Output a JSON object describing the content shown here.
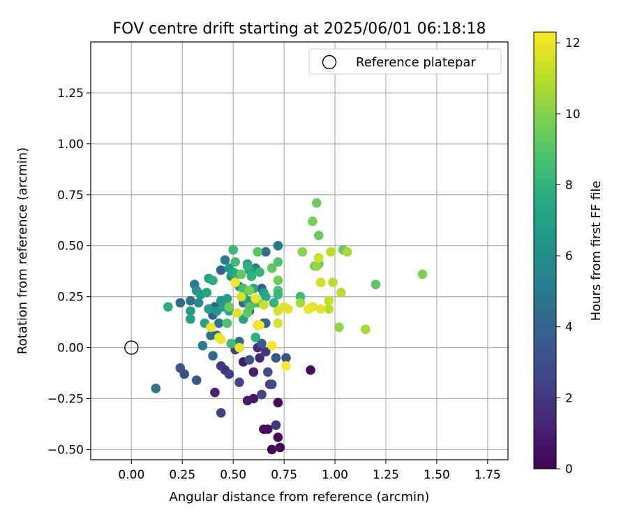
{
  "chart_data": {
    "type": "scatter",
    "title": "FOV centre drift starting at 2025/06/01 06:18:18",
    "xlabel": "Angular distance from reference (arcmin)",
    "ylabel": "Rotation from reference (arcmin)",
    "xlim": [
      -0.2,
      1.85
    ],
    "ylim": [
      -0.55,
      1.5
    ],
    "xticks": [
      {
        "v": 0.0,
        "label": "0.00"
      },
      {
        "v": 0.25,
        "label": "0.25"
      },
      {
        "v": 0.5,
        "label": "0.50"
      },
      {
        "v": 0.75,
        "label": "0.75"
      },
      {
        "v": 1.0,
        "label": "1.00"
      },
      {
        "v": 1.25,
        "label": "1.25"
      },
      {
        "v": 1.5,
        "label": "1.50"
      },
      {
        "v": 1.75,
        "label": "1.75"
      }
    ],
    "yticks": [
      {
        "v": -0.5,
        "label": "−0.50"
      },
      {
        "v": -0.25,
        "label": "−0.25"
      },
      {
        "v": 0.0,
        "label": "0.00"
      },
      {
        "v": 0.25,
        "label": "0.25"
      },
      {
        "v": 0.5,
        "label": "0.50"
      },
      {
        "v": 0.75,
        "label": "0.75"
      },
      {
        "v": 1.0,
        "label": "1.00"
      },
      {
        "v": 1.25,
        "label": "1.25"
      }
    ],
    "grid": true,
    "legend": {
      "position": "top-right",
      "label": "Reference platepar"
    },
    "reference_point": {
      "x": 0.0,
      "y": 0.0
    },
    "colorbar": {
      "label": "Hours from first FF file",
      "range": [
        0,
        12.3
      ],
      "ticks": [
        {
          "v": 0,
          "label": "0"
        },
        {
          "v": 2,
          "label": "2"
        },
        {
          "v": 4,
          "label": "4"
        },
        {
          "v": 6,
          "label": "6"
        },
        {
          "v": 8,
          "label": "8"
        },
        {
          "v": 10,
          "label": "10"
        },
        {
          "v": 12,
          "label": "12"
        }
      ],
      "colormap": "viridis"
    },
    "points": [
      {
        "x": 0.69,
        "y": -0.5,
        "h": 0.2
      },
      {
        "x": 0.72,
        "y": -0.44,
        "h": 0.3
      },
      {
        "x": 0.73,
        "y": -0.49,
        "h": 0.1
      },
      {
        "x": 0.65,
        "y": -0.4,
        "h": 0.4
      },
      {
        "x": 0.67,
        "y": -0.4,
        "h": 0.5
      },
      {
        "x": 0.71,
        "y": -0.38,
        "h": 1.8
      },
      {
        "x": 0.72,
        "y": -0.27,
        "h": 0.3
      },
      {
        "x": 0.88,
        "y": -0.11,
        "h": 0.4
      },
      {
        "x": 0.6,
        "y": -0.25,
        "h": 0.8
      },
      {
        "x": 0.57,
        "y": -0.26,
        "h": 0.9
      },
      {
        "x": 0.41,
        "y": -0.22,
        "h": 1.1
      },
      {
        "x": 0.44,
        "y": -0.32,
        "h": 2.4
      },
      {
        "x": 0.55,
        "y": -0.07,
        "h": 0.9
      },
      {
        "x": 0.6,
        "y": -0.12,
        "h": 1.0
      },
      {
        "x": 0.63,
        "y": -0.05,
        "h": 1.4
      },
      {
        "x": 0.64,
        "y": -0.23,
        "h": 2.6
      },
      {
        "x": 0.68,
        "y": -0.18,
        "h": 2.2
      },
      {
        "x": 0.69,
        "y": -0.18,
        "h": 2.8
      },
      {
        "x": 0.44,
        "y": -0.09,
        "h": 2.0
      },
      {
        "x": 0.46,
        "y": -0.11,
        "h": 1.8
      },
      {
        "x": 0.48,
        "y": -0.13,
        "h": 2.2
      },
      {
        "x": 0.53,
        "y": -0.17,
        "h": 2.5
      },
      {
        "x": 0.67,
        "y": -0.12,
        "h": 3.0
      },
      {
        "x": 0.66,
        "y": -0.02,
        "h": 2.0
      },
      {
        "x": 0.71,
        "y": -0.05,
        "h": 3.2
      },
      {
        "x": 0.76,
        "y": -0.05,
        "h": 3.0
      },
      {
        "x": 0.62,
        "y": 0.0,
        "h": 1.6
      },
      {
        "x": 0.64,
        "y": 0.02,
        "h": 3.5
      },
      {
        "x": 0.58,
        "y": -0.06,
        "h": 3.3
      },
      {
        "x": 0.51,
        "y": -0.01,
        "h": 2.2
      },
      {
        "x": 0.53,
        "y": 0.03,
        "h": 4.4
      },
      {
        "x": 0.65,
        "y": 0.12,
        "h": 2.8
      },
      {
        "x": 0.66,
        "y": 0.12,
        "h": 4.1
      },
      {
        "x": 0.24,
        "y": -0.1,
        "h": 3.2
      },
      {
        "x": 0.26,
        "y": -0.13,
        "h": 3.0
      },
      {
        "x": 0.32,
        "y": -0.16,
        "h": 3.4
      },
      {
        "x": 0.12,
        "y": -0.2,
        "h": 4.6
      },
      {
        "x": 0.4,
        "y": -0.04,
        "h": 4.3
      },
      {
        "x": 0.35,
        "y": 0.01,
        "h": 5.0
      },
      {
        "x": 0.39,
        "y": 0.06,
        "h": 4.5
      },
      {
        "x": 0.42,
        "y": 0.06,
        "h": 4.0
      },
      {
        "x": 0.43,
        "y": 0.12,
        "h": 4.7
      },
      {
        "x": 0.4,
        "y": 0.16,
        "h": 3.7
      },
      {
        "x": 0.41,
        "y": 0.2,
        "h": 3.4
      },
      {
        "x": 0.46,
        "y": 0.22,
        "h": 4.5
      },
      {
        "x": 0.44,
        "y": 0.38,
        "h": 4.0
      },
      {
        "x": 0.46,
        "y": 0.43,
        "h": 5.0
      },
      {
        "x": 0.5,
        "y": 0.48,
        "h": 3.8
      },
      {
        "x": 0.51,
        "y": 0.32,
        "h": 3.4
      },
      {
        "x": 0.55,
        "y": 0.22,
        "h": 4.1
      },
      {
        "x": 0.58,
        "y": 0.18,
        "h": 3.6
      },
      {
        "x": 0.6,
        "y": 0.22,
        "h": 3.8
      },
      {
        "x": 0.62,
        "y": 0.11,
        "h": 4.5
      },
      {
        "x": 0.64,
        "y": 0.29,
        "h": 3.5
      },
      {
        "x": 0.66,
        "y": 0.47,
        "h": 4.4
      },
      {
        "x": 0.72,
        "y": 0.5,
        "h": 5.0
      },
      {
        "x": 0.61,
        "y": 0.39,
        "h": 5.4
      },
      {
        "x": 0.24,
        "y": 0.22,
        "h": 4.2
      },
      {
        "x": 0.29,
        "y": 0.23,
        "h": 4.5
      },
      {
        "x": 0.31,
        "y": 0.31,
        "h": 5.1
      },
      {
        "x": 0.33,
        "y": 0.22,
        "h": 5.8
      },
      {
        "x": 0.32,
        "y": 0.28,
        "h": 6.3
      },
      {
        "x": 0.34,
        "y": 0.26,
        "h": 6.5
      },
      {
        "x": 0.29,
        "y": 0.14,
        "h": 7.0
      },
      {
        "x": 0.29,
        "y": 0.18,
        "h": 6.8
      },
      {
        "x": 0.36,
        "y": 0.12,
        "h": 7.2
      },
      {
        "x": 0.38,
        "y": 0.19,
        "h": 6.9
      },
      {
        "x": 0.37,
        "y": 0.27,
        "h": 7.4
      },
      {
        "x": 0.38,
        "y": 0.34,
        "h": 7.1
      },
      {
        "x": 0.4,
        "y": 0.33,
        "h": 7.6
      },
      {
        "x": 0.42,
        "y": 0.18,
        "h": 6.4
      },
      {
        "x": 0.44,
        "y": 0.23,
        "h": 6.6
      },
      {
        "x": 0.45,
        "y": 0.2,
        "h": 7.0
      },
      {
        "x": 0.47,
        "y": 0.24,
        "h": 6.8
      },
      {
        "x": 0.48,
        "y": 0.18,
        "h": 7.5
      },
      {
        "x": 0.49,
        "y": 0.35,
        "h": 6.2
      },
      {
        "x": 0.48,
        "y": 0.39,
        "h": 6.7
      },
      {
        "x": 0.5,
        "y": 0.37,
        "h": 7.3
      },
      {
        "x": 0.52,
        "y": 0.36,
        "h": 7.8
      },
      {
        "x": 0.53,
        "y": 0.3,
        "h": 6.5
      },
      {
        "x": 0.55,
        "y": 0.26,
        "h": 7.0
      },
      {
        "x": 0.55,
        "y": 0.14,
        "h": 7.1
      },
      {
        "x": 0.57,
        "y": 0.23,
        "h": 6.8
      },
      {
        "x": 0.57,
        "y": 0.41,
        "h": 6.6
      },
      {
        "x": 0.58,
        "y": 0.38,
        "h": 7.2
      },
      {
        "x": 0.59,
        "y": 0.35,
        "h": 7.9
      },
      {
        "x": 0.6,
        "y": 0.29,
        "h": 7.4
      },
      {
        "x": 0.61,
        "y": 0.05,
        "h": 7.8
      },
      {
        "x": 0.62,
        "y": 0.22,
        "h": 8.6
      },
      {
        "x": 0.62,
        "y": 0.47,
        "h": 9.0
      },
      {
        "x": 0.63,
        "y": 0.37,
        "h": 8.1
      },
      {
        "x": 0.65,
        "y": 0.27,
        "h": 6.9
      },
      {
        "x": 0.66,
        "y": 0.25,
        "h": 7.5
      },
      {
        "x": 0.7,
        "y": 0.22,
        "h": 8.0
      },
      {
        "x": 0.72,
        "y": 0.28,
        "h": 8.5
      },
      {
        "x": 0.72,
        "y": 0.26,
        "h": 8.2
      },
      {
        "x": 0.72,
        "y": 0.42,
        "h": 8.8
      },
      {
        "x": 0.69,
        "y": 0.39,
        "h": 9.2
      },
      {
        "x": 0.83,
        "y": 0.25,
        "h": 8.4
      },
      {
        "x": 0.83,
        "y": 0.22,
        "h": 10.5
      },
      {
        "x": 0.18,
        "y": 0.2,
        "h": 7.7
      },
      {
        "x": 0.5,
        "y": 0.48,
        "h": 8.3
      },
      {
        "x": 0.51,
        "y": 0.42,
        "h": 8.4
      },
      {
        "x": 0.49,
        "y": 0.02,
        "h": 8.5
      },
      {
        "x": 0.47,
        "y": 0.12,
        "h": 8.8
      },
      {
        "x": 0.57,
        "y": 0.17,
        "h": 9.2
      },
      {
        "x": 0.55,
        "y": 0.29,
        "h": 8.6
      },
      {
        "x": 0.58,
        "y": 0.2,
        "h": 9.0
      },
      {
        "x": 0.48,
        "y": 0.2,
        "h": 9.5
      },
      {
        "x": 0.72,
        "y": 0.33,
        "h": 9.6
      },
      {
        "x": 0.58,
        "y": 0.28,
        "h": 9.8
      },
      {
        "x": 0.84,
        "y": 0.47,
        "h": 10.0
      },
      {
        "x": 0.89,
        "y": 0.62,
        "h": 9.8
      },
      {
        "x": 0.91,
        "y": 0.71,
        "h": 9.5
      },
      {
        "x": 0.92,
        "y": 0.55,
        "h": 9.4
      },
      {
        "x": 0.9,
        "y": 0.4,
        "h": 9.6
      },
      {
        "x": 0.92,
        "y": 0.41,
        "h": 8.9
      },
      {
        "x": 1.04,
        "y": 0.48,
        "h": 9.4
      },
      {
        "x": 1.2,
        "y": 0.31,
        "h": 9.1
      },
      {
        "x": 1.43,
        "y": 0.36,
        "h": 9.9
      },
      {
        "x": 1.02,
        "y": 0.1,
        "h": 10.2
      },
      {
        "x": 1.15,
        "y": 0.09,
        "h": 10.6
      },
      {
        "x": 0.91,
        "y": 0.4,
        "h": 10.3
      },
      {
        "x": 0.92,
        "y": 0.44,
        "h": 11.4
      },
      {
        "x": 0.98,
        "y": 0.47,
        "h": 11.0
      },
      {
        "x": 1.06,
        "y": 0.47,
        "h": 10.7
      },
      {
        "x": 0.93,
        "y": 0.32,
        "h": 11.5
      },
      {
        "x": 0.99,
        "y": 0.32,
        "h": 11.0
      },
      {
        "x": 1.03,
        "y": 0.27,
        "h": 10.9
      },
      {
        "x": 0.97,
        "y": 0.23,
        "h": 11.2
      },
      {
        "x": 0.97,
        "y": 0.19,
        "h": 11.0
      },
      {
        "x": 0.93,
        "y": 0.19,
        "h": 11.8
      },
      {
        "x": 0.89,
        "y": 0.2,
        "h": 11.6
      },
      {
        "x": 0.87,
        "y": 0.19,
        "h": 12.0
      },
      {
        "x": 0.77,
        "y": 0.19,
        "h": 11.9
      },
      {
        "x": 0.75,
        "y": 0.2,
        "h": 11.7
      },
      {
        "x": 0.72,
        "y": 0.18,
        "h": 11.5
      },
      {
        "x": 0.72,
        "y": 0.12,
        "h": 11.6
      },
      {
        "x": 0.65,
        "y": 0.21,
        "h": 11.3
      },
      {
        "x": 0.61,
        "y": 0.24,
        "h": 12.0
      },
      {
        "x": 0.62,
        "y": 0.11,
        "h": 11.9
      },
      {
        "x": 0.63,
        "y": 0.11,
        "h": 12.1
      },
      {
        "x": 0.54,
        "y": 0.25,
        "h": 11.5
      },
      {
        "x": 0.52,
        "y": 0.17,
        "h": 11.7
      },
      {
        "x": 0.51,
        "y": 0.32,
        "h": 12.2
      },
      {
        "x": 0.43,
        "y": 0.05,
        "h": 11.8
      },
      {
        "x": 0.39,
        "y": 0.1,
        "h": 12.0
      },
      {
        "x": 0.53,
        "y": 0.0,
        "h": 11.9
      },
      {
        "x": 0.69,
        "y": 0.01,
        "h": 12.2
      },
      {
        "x": 0.76,
        "y": -0.09,
        "h": 12.3
      },
      {
        "x": 0.44,
        "y": 0.04,
        "h": 12.1
      },
      {
        "x": 0.54,
        "y": 0.36,
        "h": 9.3
      },
      {
        "x": 0.57,
        "y": 0.4,
        "h": 7.9
      }
    ]
  }
}
